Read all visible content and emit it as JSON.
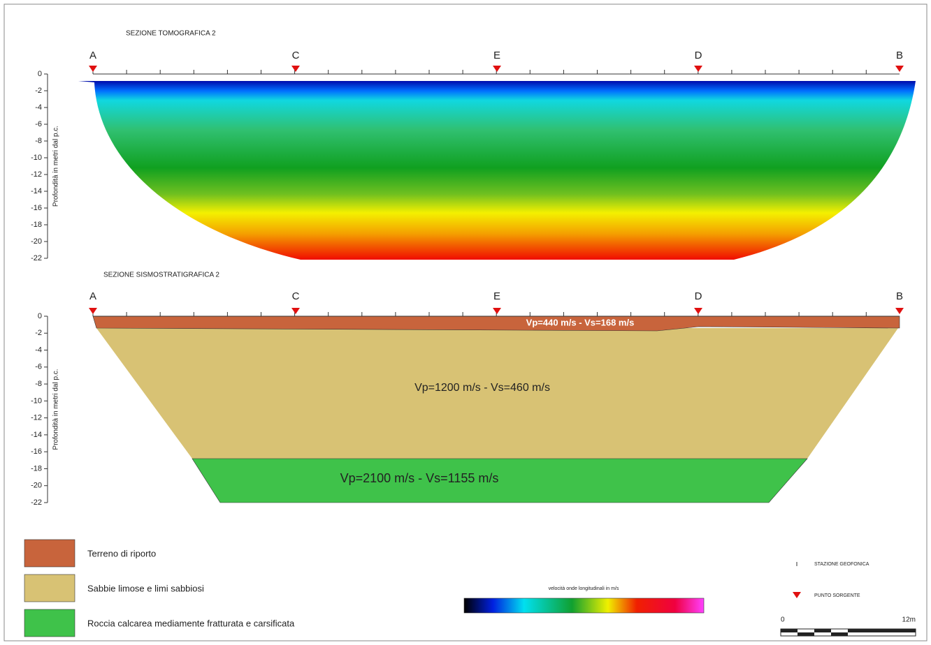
{
  "sections": [
    {
      "title": "SEZIONE TOMOGRAFICA 2",
      "y_label": "Profondità in metri dal p.c.",
      "depth_ticks": [
        0,
        -2,
        -4,
        -6,
        -8,
        -10,
        -12,
        -14,
        -16,
        -18,
        -20,
        -22
      ],
      "stations": [
        "A",
        "C",
        "E",
        "D",
        "B"
      ]
    },
    {
      "title": "SEZIONE SISMOSTRATIGRAFICA 2",
      "y_label": "Profondità in metri dal p.c.",
      "depth_ticks": [
        0,
        -2,
        -4,
        -6,
        -8,
        -10,
        -12,
        -14,
        -16,
        -18,
        -20,
        -22
      ],
      "stations": [
        "A",
        "C",
        "E",
        "D",
        "B"
      ],
      "layers": [
        "Vp=440 m/s - Vs=168 m/s",
        "Vp=1200 m/s - Vs=460 m/s",
        "Vp=2100 m/s - Vs=1155 m/s"
      ]
    }
  ],
  "legend": [
    {
      "label": "Terreno di riporto",
      "color": "#c8643c"
    },
    {
      "label": "Sabbie limose e limi sabbiosi",
      "color": "#d8c274"
    },
    {
      "label": "Roccia calcarea mediamente fratturata e carsificata",
      "color": "#3fc24a"
    }
  ],
  "colorbar": {
    "title": "velocità onde longitudinali in m/s"
  },
  "key": {
    "geophone": "STAZIONE GEOFONICA",
    "source": "PUNTO SORGENTE"
  },
  "scale": {
    "start": "0",
    "end": "12m"
  }
}
